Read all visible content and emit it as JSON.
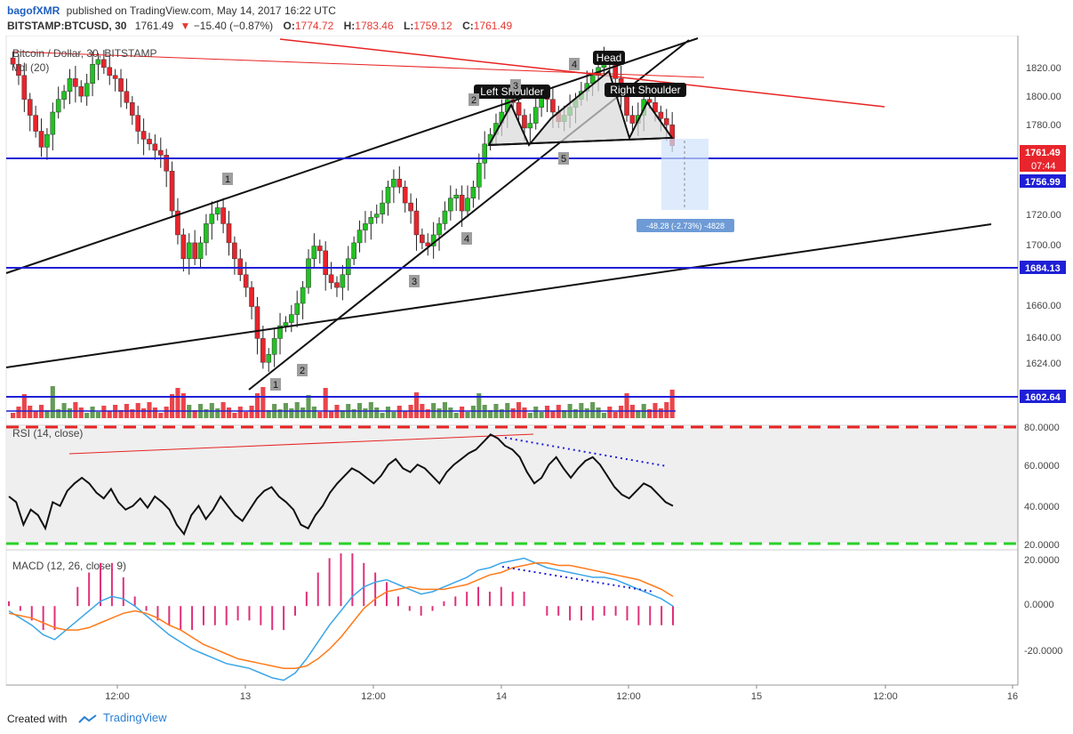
{
  "header": {
    "author": "bagofXMR",
    "published_text": "published on TradingView.com, May 14, 2017 16:22 UTC",
    "symbol": "BITSTAMP:BTCUSD, 30",
    "last": "1761.49",
    "change_arrow": "▼",
    "change": "−15.40 (−0.87%)",
    "o_label": "O:",
    "o_val": "1774.72",
    "h_label": "H:",
    "h_val": "1783.46",
    "l_label": "L:",
    "l_val": "1759.12",
    "c_label": "C:",
    "c_val": "1761.49"
  },
  "footer": {
    "created_with": "Created with",
    "brand": "TradingView"
  },
  "colors": {
    "up": "#22c222",
    "down": "#e8242c",
    "blue_line": "#1f1fd6",
    "red_line": "#e82323",
    "rsi_dash": "#e82323",
    "rsi_low_dash": "#2ad12a",
    "macd_line": "#3aa6e8",
    "signal_line": "#ff7a1a",
    "hist": "#e0307a"
  },
  "chart_data": [
    {
      "type": "candlestick",
      "title": "Bitcoin / Dollar, 30, BITSTAMP",
      "volume_label": "Vol (20)",
      "x_ticks": [
        "12:00",
        "13",
        "12:00",
        "14",
        "12:00",
        "15",
        "12:00",
        "16"
      ],
      "y_ticks": [
        "1820.00",
        "1800.00",
        "1780.00",
        "1761.49",
        "1756.99",
        "1720.00",
        "1700.00",
        "1684.13",
        "1660.00",
        "1640.00",
        "1624.00",
        "1602.64"
      ],
      "y_range": [
        1590,
        1830
      ],
      "horizontal_levels": [
        1761.49,
        1684.13,
        1602.64
      ],
      "price_badges": [
        {
          "label": "1761.49",
          "sub": "07:44",
          "color": "#e8242c"
        },
        {
          "label": "1756.99",
          "color": "#1f1fd6"
        },
        {
          "label": "1684.13",
          "color": "#1f1fd6"
        },
        {
          "label": "1602.64",
          "color": "#1f1fd6"
        }
      ],
      "pattern_labels": [
        "Left Shoulder",
        "Head",
        "Right Shoulder"
      ],
      "wave_labels": [
        "1",
        "2",
        "3",
        "4",
        "5",
        "1",
        "2",
        "3",
        "4"
      ],
      "measure_label": "-48.28 (-2.73%) -4828",
      "series": [
        {
          "name": "close",
          "values": [
            1812,
            1805,
            1790,
            1780,
            1770,
            1760,
            1768,
            1782,
            1790,
            1795,
            1803,
            1798,
            1792,
            1800,
            1812,
            1815,
            1810,
            1805,
            1803,
            1795,
            1788,
            1780,
            1770,
            1765,
            1762,
            1758,
            1755,
            1745,
            1720,
            1705,
            1690,
            1700,
            1690,
            1700,
            1712,
            1718,
            1722,
            1712,
            1700,
            1690,
            1680,
            1672,
            1660,
            1640,
            1625,
            1630,
            1640,
            1648,
            1650,
            1655,
            1662,
            1672,
            1690,
            1698,
            1695,
            1680,
            1675,
            1672,
            1680,
            1690,
            1700,
            1708,
            1712,
            1716,
            1718,
            1725,
            1735,
            1740,
            1735,
            1725,
            1720,
            1705,
            1700,
            1698,
            1705,
            1712,
            1720,
            1728,
            1730,
            1720,
            1728,
            1735,
            1750,
            1762,
            1768,
            1775,
            1782,
            1790,
            1788,
            1780,
            1772,
            1775,
            1785,
            1792,
            1790,
            1782,
            1776,
            1780,
            1785,
            1790,
            1795,
            1800,
            1805,
            1810,
            1815,
            1812,
            1803,
            1795,
            1780,
            1775,
            1780,
            1790,
            1788,
            1782,
            1778,
            1774,
            1761
          ]
        }
      ]
    },
    {
      "type": "line",
      "title": "RSI (14, close)",
      "y_ticks": [
        "80.0000",
        "60.0000",
        "40.0000",
        "20.0000"
      ],
      "y_range": [
        18,
        82
      ],
      "series": [
        {
          "name": "RSI",
          "values": [
            45,
            42,
            30,
            38,
            35,
            28,
            42,
            40,
            48,
            52,
            55,
            52,
            47,
            44,
            49,
            42,
            38,
            40,
            44,
            39,
            45,
            42,
            38,
            30,
            25,
            35,
            40,
            33,
            38,
            45,
            40,
            35,
            32,
            38,
            44,
            48,
            50,
            45,
            42,
            38,
            30,
            28,
            35,
            40,
            47,
            52,
            56,
            60,
            58,
            55,
            52,
            56,
            62,
            65,
            60,
            58,
            62,
            60,
            56,
            52,
            58,
            62,
            65,
            68,
            70,
            74,
            78,
            76,
            72,
            70,
            66,
            58,
            52,
            55,
            62,
            66,
            60,
            55,
            60,
            64,
            66,
            62,
            56,
            50,
            46,
            44,
            48,
            52,
            50,
            46,
            42,
            40
          ]
        }
      ]
    },
    {
      "type": "line",
      "title": "MACD (12, 26, close, 9)",
      "y_ticks": [
        "20.0000",
        "0.0000",
        "-20.0000"
      ],
      "y_range": [
        -33,
        22
      ],
      "series": [
        {
          "name": "MACD",
          "values": [
            -2,
            -5,
            -8,
            -12,
            -14,
            -10,
            -6,
            -2,
            2,
            4,
            3,
            0,
            -4,
            -8,
            -12,
            -15,
            -18,
            -20,
            -22,
            -24,
            -25,
            -26,
            -28,
            -30,
            -31,
            -28,
            -22,
            -15,
            -8,
            -2,
            4,
            8,
            10,
            11,
            9,
            7,
            5,
            6,
            8,
            10,
            12,
            15,
            16,
            18,
            19,
            20,
            18,
            16,
            15,
            14,
            13,
            12,
            12,
            11,
            9,
            7,
            5,
            3,
            0
          ]
        },
        {
          "name": "Signal",
          "values": [
            -3,
            -4,
            -5,
            -7,
            -9,
            -10,
            -10,
            -9,
            -7,
            -5,
            -3,
            -2,
            -3,
            -5,
            -8,
            -10,
            -13,
            -16,
            -18,
            -20,
            -22,
            -23,
            -24,
            -25,
            -26,
            -26,
            -25,
            -22,
            -18,
            -13,
            -7,
            -1,
            3,
            6,
            7,
            8,
            7,
            7,
            7,
            8,
            9,
            11,
            13,
            14,
            16,
            17,
            18,
            18,
            17,
            17,
            16,
            15,
            14,
            13,
            12,
            11,
            9,
            7,
            4
          ]
        }
      ]
    }
  ]
}
